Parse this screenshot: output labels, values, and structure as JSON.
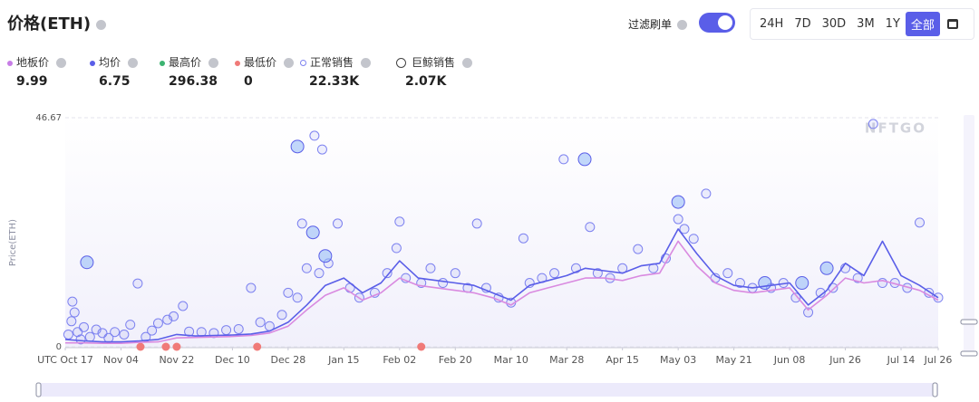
{
  "header": {
    "title": "价格(ETH)",
    "filter_label": "过滤刷单",
    "ranges": [
      "24H",
      "7D",
      "30D",
      "3M",
      "1Y",
      "全部"
    ]
  },
  "stats": [
    {
      "label": "地板价",
      "value": "9.99",
      "color": "#c77de6",
      "marker": "dot"
    },
    {
      "label": "均价",
      "value": "6.75",
      "color": "#5a5ee8",
      "marker": "dot"
    },
    {
      "label": "最高价",
      "value": "296.38",
      "color": "#3cb371",
      "marker": "dot"
    },
    {
      "label": "最低价",
      "value": "0",
      "color": "#f07a78",
      "marker": "dot"
    },
    {
      "label": "正常销售",
      "value": "22.33K",
      "color": "#7d82f0",
      "marker": "ring"
    },
    {
      "label": "巨鲸销售",
      "value": "2.07K",
      "color": "#444",
      "marker": "whale"
    }
  ],
  "chart_data": {
    "type": "line",
    "y_label": "Price(ETH)",
    "watermark": "NFTGO",
    "xlim": [
      0,
      282
    ],
    "ylim": [
      0,
      46.67
    ],
    "yticks": [
      0,
      46.67
    ],
    "grid": true,
    "xticks": [
      {
        "value": 0,
        "label": "UTC Oct 17"
      },
      {
        "value": 18,
        "label": "Nov 04"
      },
      {
        "value": 36,
        "label": "Nov 22"
      },
      {
        "value": 54,
        "label": "Dec 10"
      },
      {
        "value": 72,
        "label": "Dec 28"
      },
      {
        "value": 90,
        "label": "Jan 15"
      },
      {
        "value": 108,
        "label": "Feb 02"
      },
      {
        "value": 126,
        "label": "Feb 20"
      },
      {
        "value": 144,
        "label": "Mar 10"
      },
      {
        "value": 162,
        "label": "Mar 28"
      },
      {
        "value": 180,
        "label": "Apr 15"
      },
      {
        "value": 198,
        "label": "May 03"
      },
      {
        "value": 216,
        "label": "May 21"
      },
      {
        "value": 234,
        "label": "Jun 08"
      },
      {
        "value": 252,
        "label": "Jun 26"
      },
      {
        "value": 270,
        "label": "Jul 14"
      },
      {
        "value": 282,
        "label": "Jul 26"
      }
    ],
    "series": [
      {
        "type": "scatter",
        "style": "ring",
        "color": "#7d82f0",
        "x": [
          1,
          2,
          2.3,
          3,
          4,
          5,
          6,
          8,
          10,
          12,
          14,
          16,
          19,
          21,
          23.4,
          26,
          28,
          30,
          33,
          35,
          38,
          40,
          44,
          48,
          52,
          56,
          60,
          63,
          66,
          70,
          72,
          75,
          76.5,
          78,
          80.5,
          82,
          83,
          85,
          88,
          92,
          95,
          100,
          104,
          107,
          108,
          110,
          115,
          118,
          122,
          126,
          130,
          133,
          136,
          140,
          144,
          148,
          150,
          154,
          158,
          161,
          165,
          169.5,
          172,
          176,
          180,
          185,
          190,
          194,
          198,
          200,
          203,
          207,
          210,
          214,
          218,
          222,
          228,
          232,
          236,
          240,
          244,
          248,
          252,
          256,
          261,
          264,
          268,
          272,
          276,
          279,
          282
        ],
        "values": [
          2.5,
          5.2,
          9.2,
          7,
          3,
          1.5,
          4,
          2,
          3.5,
          2.8,
          1.8,
          3,
          2.5,
          4.5,
          12.9,
          2,
          3.3,
          4.8,
          5.5,
          6.2,
          8.3,
          3.1,
          3.0,
          2.8,
          3.4,
          3.6,
          12.0,
          5,
          4.2,
          6.5,
          11,
          10,
          25.1,
          16,
          43,
          15,
          40.2,
          17,
          25.1,
          12,
          10,
          11,
          15,
          20.1,
          25.5,
          14,
          13,
          16,
          13,
          15,
          12,
          25.1,
          12,
          10,
          9,
          22.1,
          13,
          14,
          15,
          38.2,
          16,
          24.4,
          15,
          14,
          16,
          19.9,
          16,
          18,
          26,
          24,
          22,
          31.2,
          14,
          15,
          13,
          12,
          12,
          13,
          10,
          7,
          11,
          12,
          16,
          14,
          45.4,
          13,
          13,
          12,
          25.3,
          11,
          10
        ]
      },
      {
        "type": "scatter",
        "style": "whale",
        "color": "#8fb8f5",
        "x": [
          7,
          75,
          80,
          84,
          167.8,
          198,
          226,
          238,
          246
        ],
        "values": [
          17.2,
          40.8,
          23.3,
          18.5,
          38.2,
          29.5,
          13,
          13,
          16
        ]
      },
      {
        "type": "scatter",
        "style": "dot",
        "color": "#f07a78",
        "x": [
          24.3,
          32.5,
          36,
          62,
          115
        ],
        "values": [
          0,
          0,
          0,
          0,
          0
        ]
      },
      {
        "type": "line",
        "color": "#d98ae0",
        "x": [
          0,
          6,
          12,
          18,
          24,
          30,
          36,
          42,
          48,
          54,
          60,
          66,
          72,
          78,
          84,
          90,
          96,
          102,
          108,
          114,
          120,
          126,
          132,
          138,
          144,
          150,
          156,
          162,
          168,
          174,
          180,
          186,
          192,
          198,
          204,
          210,
          216,
          222,
          228,
          234,
          240,
          246,
          252,
          258,
          264,
          270,
          276,
          282
        ],
        "values": [
          0.8,
          0.8,
          0.7,
          0.7,
          0.9,
          1.0,
          1.8,
          1.9,
          2.0,
          2.1,
          2.3,
          2.8,
          4.2,
          7.5,
          10.5,
          12.0,
          9.5,
          11.0,
          14.0,
          12.5,
          12.0,
          11.5,
          11.0,
          10.0,
          8.5,
          11.0,
          12.0,
          13.0,
          14.0,
          14.0,
          13.5,
          14.5,
          15.0,
          21.5,
          16.5,
          13.0,
          11.5,
          11.0,
          11.5,
          12.0,
          7.5,
          10.5,
          14.0,
          13.0,
          13.5,
          12.5,
          11.5,
          9.5
        ]
      },
      {
        "type": "line",
        "color": "#5a5ee8",
        "x": [
          0,
          6,
          12,
          18,
          24,
          30,
          36,
          42,
          48,
          54,
          60,
          66,
          72,
          78,
          84,
          90,
          96,
          102,
          108,
          114,
          120,
          126,
          132,
          138,
          144,
          150,
          156,
          162,
          168,
          174,
          180,
          186,
          192,
          198,
          204,
          210,
          216,
          222,
          228,
          234,
          240,
          246,
          252,
          258,
          264,
          270,
          276,
          282
        ],
        "values": [
          1.5,
          1.2,
          1.0,
          1.0,
          1.2,
          1.5,
          2.5,
          2.2,
          2.3,
          2.4,
          2.6,
          3.2,
          5.0,
          8.5,
          12.5,
          14.0,
          11.0,
          13.0,
          17.5,
          14.0,
          13.5,
          13.0,
          12.5,
          11.0,
          9.5,
          12.5,
          13.5,
          14.5,
          16.0,
          15.5,
          15.0,
          16.5,
          17.0,
          24.0,
          19.0,
          14.5,
          12.5,
          12.0,
          12.5,
          13.0,
          8.5,
          11.5,
          17.0,
          14.5,
          21.5,
          14.5,
          12.5,
          10.0
        ]
      }
    ]
  }
}
